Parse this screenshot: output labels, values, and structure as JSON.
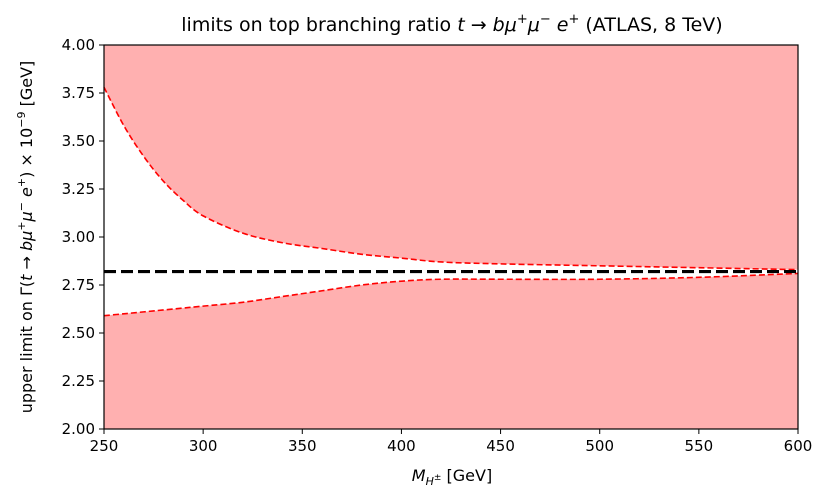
{
  "chart_data": {
    "type": "area",
    "title": "limits on top branching ratio t → bμ⁺μ⁻e⁺ (ATLAS, 8 TeV)",
    "xlabel": "M_{H^±} [GeV]",
    "ylabel": "upper limit on Γ(t → bμ⁺μ⁻e⁺) × 10⁻⁹ [GeV]",
    "xlim": [
      250,
      600
    ],
    "ylim": [
      2.0,
      4.0
    ],
    "x_ticks": [
      250,
      300,
      350,
      400,
      450,
      500,
      550,
      600
    ],
    "y_ticks": [
      "2.00",
      "2.25",
      "2.50",
      "2.75",
      "3.00",
      "3.25",
      "3.50",
      "3.75",
      "4.00"
    ],
    "grid": false,
    "colors": {
      "fill": "#ffb0b0",
      "bound_line": "#ff0000",
      "reference_line": "#000000"
    },
    "reference_value": 2.82,
    "x": [
      250,
      260,
      270,
      280,
      290,
      300,
      320,
      340,
      360,
      380,
      400,
      420,
      450,
      500,
      550,
      600
    ],
    "upper_bound": [
      3.78,
      3.58,
      3.42,
      3.29,
      3.19,
      3.11,
      3.02,
      2.97,
      2.94,
      2.91,
      2.89,
      2.87,
      2.86,
      2.85,
      2.84,
      2.83
    ],
    "lower_bound": [
      2.59,
      2.6,
      2.61,
      2.62,
      2.63,
      2.64,
      2.66,
      2.69,
      2.72,
      2.75,
      2.77,
      2.78,
      2.78,
      2.78,
      2.79,
      2.81
    ]
  }
}
